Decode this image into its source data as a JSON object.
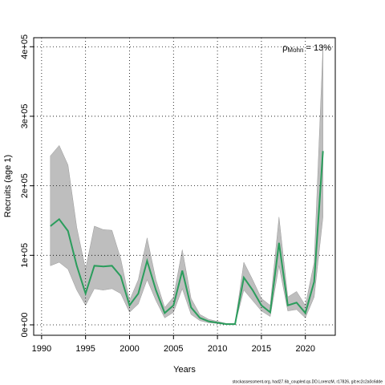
{
  "chart_data": {
    "type": "line",
    "xlabel": "Years",
    "ylabel": "Recruits (age 1)",
    "annotation": {
      "symbol": "ρ",
      "subscript": "Mohn",
      "text": " = 13%"
    },
    "footer": "stockassessment.org, had27.6b_coupled.qs.DD.LorenzM, r17826, git:ec2c2a0c6dde",
    "x": [
      1991,
      1992,
      1993,
      1994,
      1995,
      1996,
      1997,
      1998,
      1999,
      2000,
      2001,
      2002,
      2003,
      2004,
      2005,
      2006,
      2007,
      2008,
      2009,
      2010,
      2011,
      2012,
      2013,
      2014,
      2015,
      2016,
      2017,
      2018,
      2019,
      2020,
      2021,
      2022
    ],
    "values": [
      142000,
      152000,
      135000,
      85000,
      45000,
      85000,
      84000,
      85000,
      70000,
      28000,
      45000,
      92000,
      50000,
      17000,
      28000,
      78000,
      25000,
      10000,
      5000,
      3000,
      1000,
      1000,
      68000,
      50000,
      28000,
      18000,
      118000,
      28000,
      32000,
      17000,
      62000,
      250000
    ],
    "upper": [
      243000,
      258000,
      230000,
      140000,
      80000,
      142000,
      137000,
      136000,
      95000,
      35000,
      65000,
      125000,
      65000,
      25000,
      40000,
      108000,
      38000,
      15000,
      8000,
      5000,
      2000,
      2000,
      90000,
      65000,
      38000,
      28000,
      155000,
      40000,
      48000,
      28000,
      90000,
      400000
    ],
    "lower": [
      85000,
      90000,
      80000,
      50000,
      28000,
      52000,
      50000,
      52000,
      45000,
      18000,
      30000,
      65000,
      35000,
      10000,
      18000,
      52000,
      15000,
      6000,
      3000,
      2000,
      500,
      500,
      50000,
      35000,
      20000,
      12000,
      85000,
      20000,
      22000,
      10000,
      40000,
      155000
    ],
    "color": "#2a9d5c",
    "band_color": "#bebebe",
    "xlim": [
      1989.1,
      2023.4
    ],
    "ylim": [
      -15000,
      413000
    ],
    "xticks": [
      1990,
      1995,
      2000,
      2005,
      2010,
      2015,
      2020
    ],
    "yticks": [
      {
        "value": 0,
        "label": "0e+00"
      },
      {
        "value": 100000,
        "label": "1e+05"
      },
      {
        "value": 200000,
        "label": "2e+05"
      },
      {
        "value": 300000,
        "label": "3e+05"
      },
      {
        "value": 400000,
        "label": "4e+05"
      }
    ],
    "grid": true
  }
}
